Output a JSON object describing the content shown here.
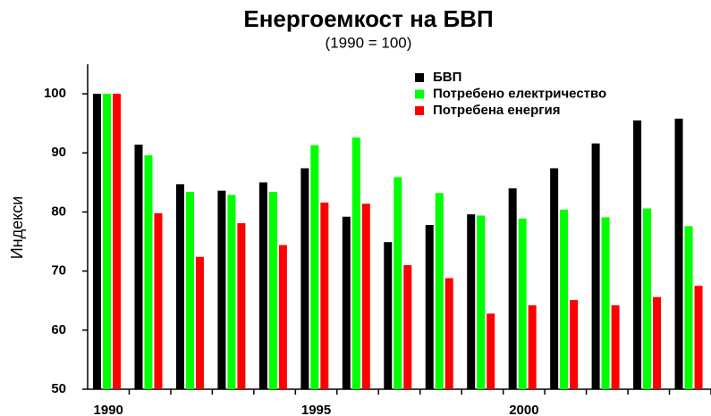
{
  "chart_data": {
    "type": "bar",
    "title": "Енергоемкост на БВП",
    "subtitle": "(1990 = 100)",
    "y_label": "Индекси",
    "categories": [
      "1990",
      null,
      null,
      null,
      null,
      "1995",
      null,
      null,
      null,
      null,
      "2000",
      null,
      null,
      null,
      null
    ],
    "series": [
      {
        "name": "БВП",
        "color": "#000000",
        "values": [
          100,
          91.4,
          84.7,
          83.6,
          85.0,
          87.4,
          79.2,
          74.9,
          77.8,
          79.6,
          84.0,
          87.4,
          91.6,
          95.5,
          95.8
        ]
      },
      {
        "name": "Потребено електричество",
        "color": "#00ff00",
        "values": [
          100,
          89.6,
          83.4,
          82.9,
          83.4,
          91.3,
          92.6,
          85.9,
          83.2,
          79.4,
          78.9,
          80.4,
          79.1,
          80.6,
          77.6
        ]
      },
      {
        "name": "Потребена енергия",
        "color": "#ff0000",
        "values": [
          100,
          79.8,
          72.4,
          78.1,
          74.4,
          81.6,
          81.4,
          71.0,
          68.8,
          62.8,
          64.2,
          65.1,
          64.2,
          65.6,
          67.5
        ]
      }
    ],
    "ylim": [
      50,
      105
    ],
    "yticks": [
      50,
      60,
      70,
      80,
      90,
      100
    ],
    "legend": "upper right"
  }
}
